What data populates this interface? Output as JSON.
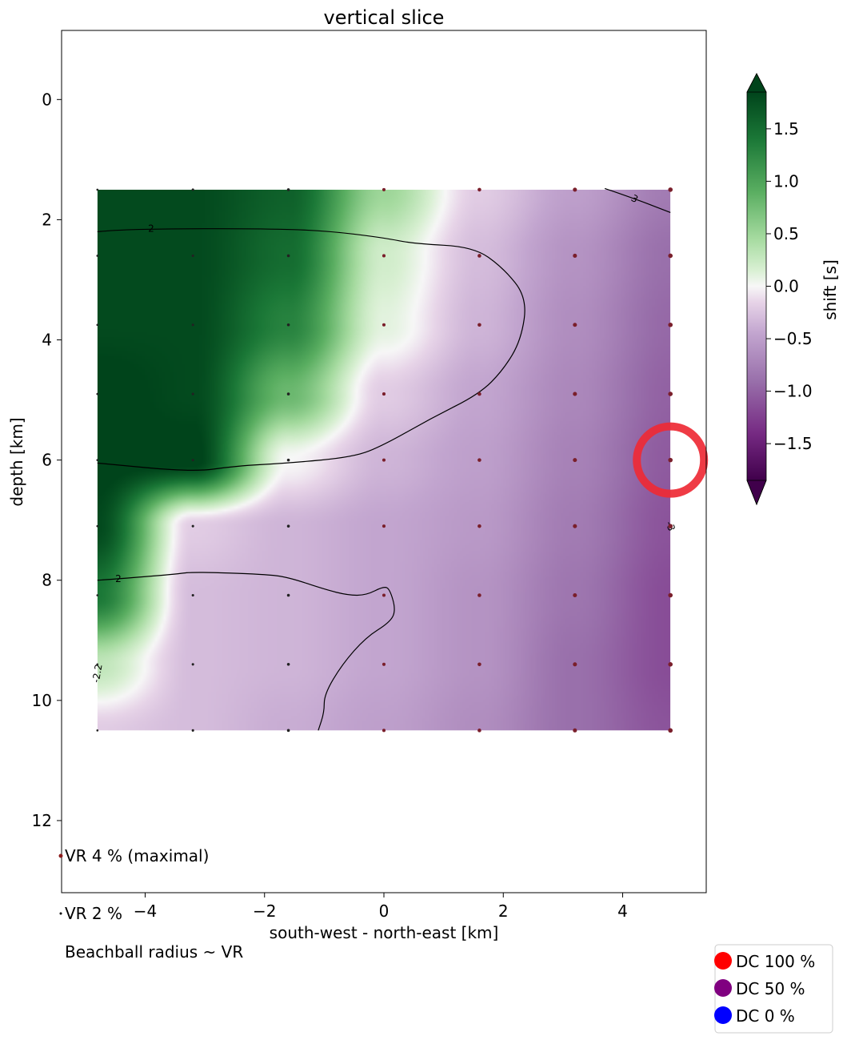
{
  "chart_data": {
    "type": "heatmap",
    "title": "vertical slice",
    "xlabel": "south-west - north-east [km]",
    "ylabel": "depth [km]",
    "xlim": [
      -5.4,
      5.4
    ],
    "ylim": [
      13.2,
      -1.15
    ],
    "xticks": [
      -4,
      -2,
      0,
      2,
      4
    ],
    "xtick_labels": [
      "−4",
      "−2",
      "0",
      "2",
      "4"
    ],
    "yticks": [
      0,
      2,
      4,
      6,
      8,
      10,
      12
    ],
    "ytick_labels": [
      "0",
      "2",
      "4",
      "6",
      "8",
      "10",
      "12"
    ],
    "grid": false,
    "field_extent": {
      "x": [
        -4.8,
        4.8
      ],
      "depth": [
        1.5,
        10.5
      ]
    },
    "grid_x": [
      -4.8,
      -3.2,
      -1.6,
      0,
      1.6,
      3.2,
      4.8
    ],
    "grid_depth": [
      1.5,
      2.6,
      3.75,
      4.9,
      6.0,
      7.1,
      8.25,
      9.4,
      10.5
    ],
    "shift_field": [
      [
        1.8,
        1.8,
        1.6,
        0.5,
        -0.2,
        -0.5,
        -0.8
      ],
      [
        1.8,
        1.8,
        1.5,
        0.2,
        -0.3,
        -0.6,
        -0.9
      ],
      [
        1.8,
        1.8,
        1.3,
        0.1,
        -0.35,
        -0.65,
        -0.95
      ],
      [
        1.9,
        1.8,
        0.8,
        -0.2,
        -0.45,
        -0.7,
        -1.0
      ],
      [
        1.9,
        1.9,
        0.0,
        -0.35,
        -0.5,
        -0.75,
        -1.05
      ],
      [
        1.8,
        -0.2,
        -0.35,
        -0.45,
        -0.55,
        -0.8,
        -1.1
      ],
      [
        1.4,
        -0.3,
        -0.35,
        -0.45,
        -0.6,
        -0.85,
        -1.15
      ],
      [
        0.3,
        -0.3,
        -0.35,
        -0.45,
        -0.6,
        -0.9,
        -1.15
      ],
      [
        -0.2,
        -0.3,
        -0.4,
        -0.5,
        -0.65,
        -0.9,
        -1.1
      ]
    ],
    "contours": [
      {
        "label": "2",
        "points": [
          [
            -4.8,
            2.2
          ],
          [
            -4.5,
            2.17
          ],
          [
            -3.5,
            2.15
          ],
          [
            -2,
            2.15
          ],
          [
            -1,
            2.18
          ],
          [
            0,
            2.3
          ],
          [
            0.5,
            2.4
          ],
          [
            1.5,
            2.45
          ],
          [
            2.0,
            2.8
          ],
          [
            2.4,
            3.3
          ],
          [
            2.3,
            4.0
          ],
          [
            2.0,
            4.5
          ],
          [
            1.6,
            4.9
          ],
          [
            0.8,
            5.3
          ],
          [
            0,
            5.75
          ],
          [
            -0.5,
            5.95
          ],
          [
            -1.6,
            6.05
          ],
          [
            -2.5,
            6.1
          ],
          [
            -3.2,
            6.2
          ],
          [
            -4.8,
            6.05
          ]
        ]
      },
      {
        "label": "2",
        "points": [
          [
            -4.8,
            8.0
          ],
          [
            -4.5,
            7.98
          ],
          [
            -3.5,
            7.9
          ],
          [
            -3.2,
            7.86
          ],
          [
            -2,
            7.9
          ],
          [
            -1.6,
            7.95
          ],
          [
            -1,
            8.15
          ],
          [
            -0.6,
            8.25
          ],
          [
            -0.3,
            8.25
          ],
          [
            0,
            8.1
          ],
          [
            0.1,
            8.15
          ],
          [
            0.2,
            8.5
          ],
          [
            0.1,
            8.7
          ],
          [
            -0.3,
            8.95
          ],
          [
            -0.7,
            9.4
          ],
          [
            -1.0,
            9.9
          ],
          [
            -1.0,
            10.2
          ],
          [
            -1.1,
            10.5
          ]
        ]
      },
      {
        "label": "3",
        "points": [
          [
            3.7,
            1.48
          ],
          [
            4.2,
            1.65
          ],
          [
            4.8,
            1.88
          ]
        ]
      }
    ],
    "contour_labels": [
      {
        "text": "2",
        "x": -3.9,
        "y": 2.15,
        "angle": 0
      },
      {
        "text": "2",
        "x": -4.45,
        "y": 7.98,
        "angle": 0
      },
      {
        "text": "3",
        "x": 4.2,
        "y": 1.65,
        "angle": 30
      },
      {
        "text": "-3",
        "x": 4.8,
        "y": 7.1,
        "angle": 70
      },
      {
        "text": "-2.2",
        "x": -4.8,
        "y": 9.55,
        "angle": -80
      }
    ],
    "sample_points": {
      "x": [
        -4.8,
        -3.2,
        -1.6,
        0,
        1.6,
        3.2,
        4.8
      ],
      "depth": [
        1.5,
        2.6,
        3.75,
        4.9,
        6.0,
        7.1,
        8.25,
        9.4,
        10.5
      ]
    },
    "highlight": {
      "x": 4.8,
      "depth": 6.0,
      "color": "#ee2a35"
    },
    "colorbar": {
      "label": "shift [s]",
      "min": -1.85,
      "max": 1.85,
      "ticks": [
        1.5,
        1.0,
        0.5,
        0.0,
        -0.5,
        -1.0,
        -1.5
      ],
      "tick_labels": [
        "1.5",
        "1.0",
        "0.5",
        "0.0",
        "−0.5",
        "−1.0",
        "−1.5"
      ],
      "extend": "both",
      "colormap": "PRGn",
      "stops": [
        {
          "v": -1.85,
          "color": "#40004b"
        },
        {
          "v": -1.4,
          "color": "#762a83"
        },
        {
          "v": -0.9,
          "color": "#9970ab"
        },
        {
          "v": -0.45,
          "color": "#c2a5cf"
        },
        {
          "v": -0.15,
          "color": "#e7d4e8"
        },
        {
          "v": 0.0,
          "color": "#f7f7f7"
        },
        {
          "v": 0.15,
          "color": "#d9f0d3"
        },
        {
          "v": 0.45,
          "color": "#a6dba0"
        },
        {
          "v": 0.9,
          "color": "#5aae61"
        },
        {
          "v": 1.4,
          "color": "#1b7837"
        },
        {
          "v": 1.85,
          "color": "#00441b"
        }
      ]
    },
    "vr_legend": [
      {
        "text": "VR  4 % (maximal)"
      },
      {
        "text": "VR  2 %"
      },
      {
        "text": "Beachball radius ~ VR"
      }
    ],
    "dc_legend": [
      {
        "label": "DC 100 %",
        "color": "#ff0000"
      },
      {
        "label": "DC 50 %",
        "color": "#800080"
      },
      {
        "label": "DC 0 %",
        "color": "#0000ff"
      }
    ]
  }
}
